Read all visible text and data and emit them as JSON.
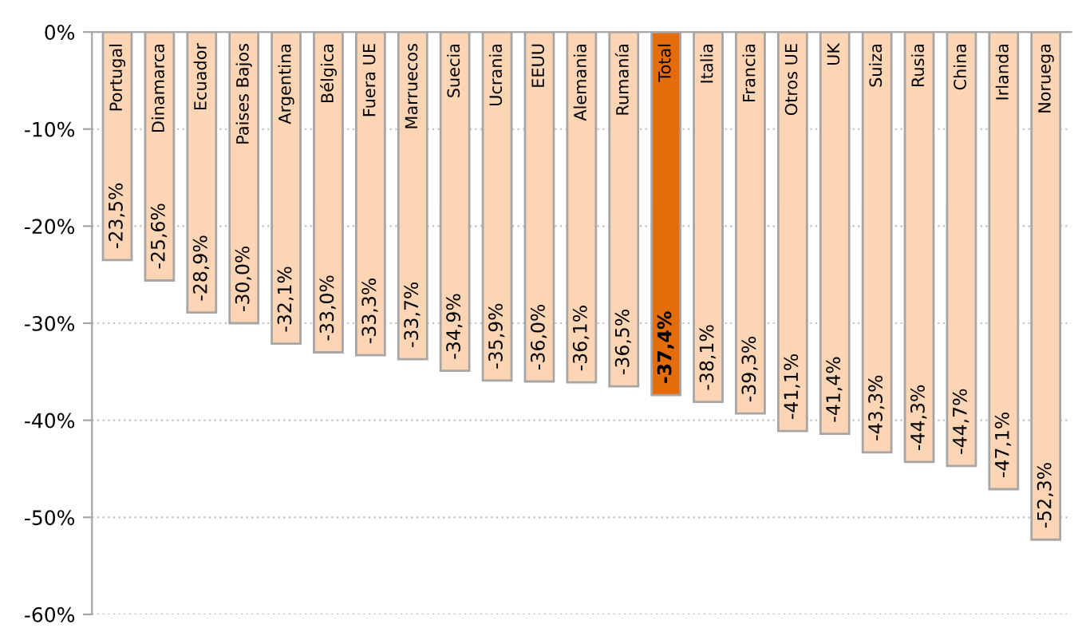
{
  "chart_data": {
    "type": "bar",
    "categories": [
      "Portugal",
      "Dinamarca",
      "Ecuador",
      "Paises Bajos",
      "Argentina",
      "Bélgica",
      "Fuera UE",
      "Marruecos",
      "Suecia",
      "Ucrania",
      "EEUU",
      "Alemania",
      "Rumanía",
      "Total",
      "Italia",
      "Francia",
      "Otros UE",
      "UK",
      "Suiza",
      "Rusia",
      "China",
      "Irlanda",
      "Noruega"
    ],
    "values": [
      -23.5,
      -25.6,
      -28.9,
      -30.0,
      -32.1,
      -33.0,
      -33.3,
      -33.7,
      -34.9,
      -35.9,
      -36.0,
      -36.1,
      -36.5,
      -37.4,
      -38.1,
      -39.3,
      -41.1,
      -41.4,
      -43.3,
      -44.3,
      -44.7,
      -47.1,
      -52.3
    ],
    "value_labels": [
      "-23,5%",
      "-25,6%",
      "-28,9%",
      "-30,0%",
      "-32,1%",
      "-33,0%",
      "-33,3%",
      "-33,7%",
      "-34,9%",
      "-35,9%",
      "-36,0%",
      "-36,1%",
      "-36,5%",
      "-37,4%",
      "-38,1%",
      "-39,3%",
      "-41,1%",
      "-41,4%",
      "-43,3%",
      "-44,3%",
      "-44,7%",
      "-47,1%",
      "-52,3%"
    ],
    "colors": [
      "#fcd5b5",
      "#fcd5b5",
      "#fcd5b5",
      "#fcd5b5",
      "#fcd5b5",
      "#fcd5b5",
      "#fcd5b5",
      "#fcd5b5",
      "#fcd5b5",
      "#fcd5b5",
      "#fcd5b5",
      "#fcd5b5",
      "#fcd5b5",
      "#e46c0a",
      "#fcd5b5",
      "#fcd5b5",
      "#fcd5b5",
      "#fcd5b5",
      "#fcd5b5",
      "#fcd5b5",
      "#fcd5b5",
      "#fcd5b5",
      "#fcd5b5"
    ],
    "ylim": [
      -60,
      0
    ],
    "yticks": [
      {
        "value": -60,
        "label": "-60%"
      },
      {
        "value": -50,
        "label": "-50%"
      },
      {
        "value": -40,
        "label": "-40%"
      },
      {
        "value": -30,
        "label": "-30%"
      },
      {
        "value": -20,
        "label": "-20%"
      },
      {
        "value": -10,
        "label": "-10%"
      },
      {
        "value": 0,
        "label": "0%"
      }
    ],
    "grid": "y"
  }
}
